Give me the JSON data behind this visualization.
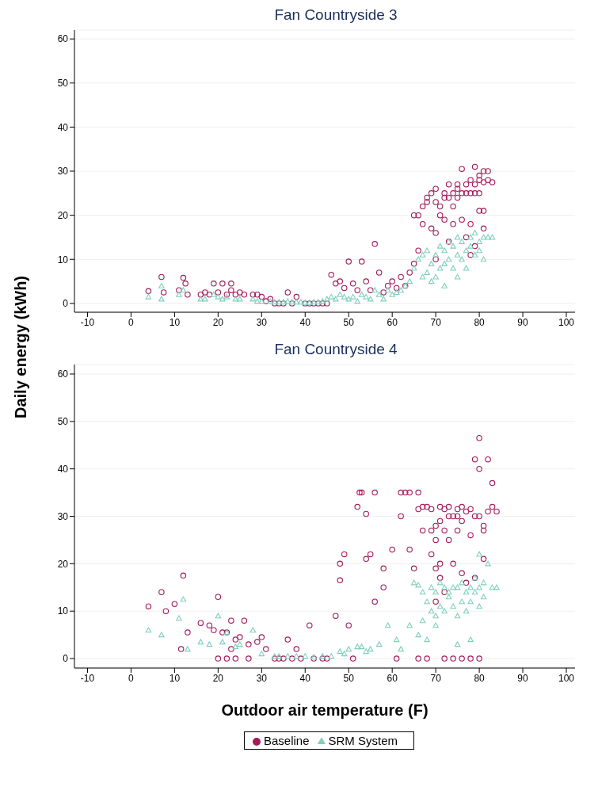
{
  "chart_data": [
    {
      "type": "scatter",
      "title": "Fan Countryside 3",
      "ylabel": "Daily energy (kWh)",
      "xlim": [
        -13,
        102
      ],
      "xticks": [
        -10,
        0,
        10,
        20,
        30,
        40,
        50,
        60,
        70,
        80,
        90,
        100
      ],
      "ylim": [
        -2,
        62
      ],
      "yticks": [
        0,
        10,
        20,
        30,
        40,
        50,
        60
      ],
      "grid": "y",
      "legend": false,
      "series": [
        {
          "color": "#a3195b",
          "marker": "circle",
          "x": [
            4,
            7,
            7.5,
            11,
            12,
            12.5,
            13,
            16,
            17,
            18,
            19,
            20,
            21,
            22,
            23,
            23,
            24,
            25,
            26,
            28,
            29,
            30,
            31,
            32,
            33,
            34,
            35,
            36,
            37,
            38,
            40,
            41,
            42,
            43,
            44,
            45,
            46,
            47,
            48,
            49,
            50,
            51,
            52,
            53,
            54,
            55,
            56,
            57,
            58,
            59,
            60,
            61,
            62,
            63,
            64,
            65,
            65,
            66,
            66,
            67,
            67,
            68,
            68,
            69,
            69,
            70,
            70,
            70,
            70,
            71,
            71,
            72,
            72,
            72,
            73,
            73,
            73,
            74,
            74,
            74,
            75,
            75,
            75,
            76,
            76,
            76,
            77,
            77,
            77,
            78,
            78,
            78,
            79,
            79,
            79,
            80,
            80,
            80,
            80,
            81,
            81,
            81,
            81,
            82,
            82,
            83,
            79,
            78
          ],
          "values": [
            2.8,
            6,
            2.5,
            3,
            5.8,
            4.5,
            2,
            2,
            2.5,
            2,
            4.5,
            2.5,
            4.5,
            2,
            4.5,
            3,
            2,
            2.5,
            2,
            2,
            2,
            1.5,
            0.5,
            1,
            0,
            0,
            0,
            2.5,
            0,
            1.5,
            0,
            0,
            0,
            0,
            0,
            0,
            6.5,
            4.5,
            5,
            3.5,
            9.5,
            4.5,
            3,
            9.5,
            5,
            3,
            13.5,
            7,
            2.5,
            4,
            5,
            3.5,
            6,
            4,
            7,
            9,
            20,
            20,
            12,
            22,
            18,
            24,
            23,
            25,
            17,
            23,
            26,
            16,
            10,
            22,
            20,
            24,
            25,
            19,
            27,
            24,
            14,
            25,
            22,
            18,
            27,
            26,
            24,
            30.5,
            25,
            19,
            25,
            27,
            15,
            28,
            25,
            18,
            31,
            27,
            25,
            29,
            28,
            25,
            21,
            30,
            27.5,
            21,
            17,
            28,
            30,
            27.5,
            13,
            11
          ]
        },
        {
          "color": "#7fcfbd",
          "marker": "triangle",
          "x": [
            4,
            7,
            7,
            11,
            12,
            16,
            17,
            19,
            20,
            21,
            22,
            24,
            25,
            28,
            29,
            30,
            32,
            33,
            34,
            35,
            36,
            37,
            38,
            39,
            40,
            41,
            42,
            43,
            44,
            45,
            46,
            47,
            48,
            49,
            50,
            51,
            52,
            53,
            54,
            55,
            56,
            57,
            58,
            59,
            60,
            61,
            62,
            63,
            64,
            65,
            66,
            67,
            67,
            68,
            68,
            69,
            69,
            70,
            70,
            71,
            71,
            72,
            72,
            73,
            73,
            74,
            74,
            75,
            75,
            76,
            76,
            77,
            77,
            78,
            78,
            79,
            79,
            80,
            80,
            81,
            81,
            82,
            83,
            75,
            72
          ],
          "values": [
            1.5,
            4,
            1,
            2,
            3,
            1,
            1,
            2,
            1.5,
            1,
            1.5,
            1,
            1,
            1,
            0.5,
            0.5,
            0.5,
            0.3,
            0.3,
            0.3,
            0.5,
            0.3,
            0.3,
            0.3,
            0.2,
            0.2,
            0.3,
            0.3,
            0.5,
            1,
            1.5,
            1,
            2,
            1.5,
            1,
            1.5,
            0.5,
            2,
            1.5,
            1,
            3,
            2,
            1,
            3,
            2,
            2.5,
            3,
            4,
            5,
            8,
            10,
            11,
            6,
            7,
            12,
            5,
            9,
            6,
            11,
            8,
            13,
            9,
            12,
            10,
            14,
            8,
            13,
            11,
            15,
            10,
            14,
            12,
            8,
            13,
            15,
            11,
            16,
            14,
            12,
            15,
            10,
            15,
            15,
            6,
            4
          ]
        }
      ]
    },
    {
      "type": "scatter",
      "title": "Fan Countryside 4",
      "xlabel": "Outdoor air temperature (F)",
      "xlim": [
        -13,
        102
      ],
      "xticks": [
        -10,
        0,
        10,
        20,
        30,
        40,
        50,
        60,
        70,
        80,
        90,
        100
      ],
      "ylim": [
        -2,
        62
      ],
      "yticks": [
        0,
        10,
        20,
        30,
        40,
        50,
        60
      ],
      "grid": "y",
      "legend": "bottom",
      "series": [
        {
          "name": "Baseline",
          "color": "#a3195b",
          "marker": "circle",
          "x": [
            4,
            7,
            8,
            10,
            12,
            11.5,
            13,
            16,
            18,
            19,
            20,
            21,
            22,
            23,
            23,
            24,
            25,
            26,
            27,
            29,
            30,
            31,
            33,
            34,
            35,
            36,
            37,
            38,
            39,
            41,
            42,
            44,
            45,
            47,
            48,
            48,
            49,
            50,
            51,
            52,
            52.5,
            53,
            54,
            54,
            55,
            56,
            56,
            58,
            58,
            60,
            61,
            62,
            62,
            63,
            64,
            64,
            65,
            66,
            66,
            67,
            67,
            68,
            68,
            69,
            69,
            69,
            70,
            70,
            70,
            70,
            71,
            71,
            71,
            71,
            72,
            72,
            72,
            73,
            73,
            73,
            74,
            74,
            75,
            75,
            75,
            76,
            76,
            76,
            77,
            77,
            78,
            78,
            79,
            79,
            79,
            80,
            80,
            80,
            80,
            81,
            81,
            82,
            82,
            83,
            83,
            84,
            81,
            66,
            72,
            74,
            76,
            78,
            20,
            22,
            24,
            27
          ],
          "values": [
            11,
            14,
            10,
            11.5,
            17.5,
            2,
            5.5,
            7.5,
            7,
            6,
            13,
            5.5,
            5.5,
            8,
            2,
            4,
            4.5,
            8,
            3,
            3.5,
            4.5,
            2,
            0,
            0,
            0,
            4,
            0,
            2,
            0,
            7,
            0,
            0,
            0,
            9,
            20,
            16.5,
            22,
            7,
            0,
            32,
            35,
            35,
            30.5,
            21,
            22,
            35,
            12,
            15,
            19,
            23,
            0,
            35,
            30,
            35,
            35,
            23,
            19,
            31.5,
            35,
            32,
            27,
            32,
            0,
            31.5,
            27,
            22,
            25,
            28,
            19,
            12,
            32,
            29,
            20,
            17,
            31.5,
            27,
            14,
            32,
            30,
            25,
            30,
            20,
            31.5,
            30,
            27,
            32,
            29,
            18,
            31,
            16,
            31.5,
            26,
            42,
            30,
            17,
            46.5,
            40,
            30,
            0,
            28,
            21,
            42,
            31,
            37,
            32,
            31,
            27,
            0,
            0,
            0,
            0,
            0,
            0,
            0,
            0,
            0
          ]
        },
        {
          "name": "SRM System",
          "color": "#7fcfbd",
          "marker": "triangle",
          "x": [
            4,
            7,
            11,
            12,
            13,
            16,
            18,
            20,
            21,
            22,
            24,
            25,
            28,
            30,
            33,
            34,
            36,
            38,
            40,
            42,
            44,
            46,
            48,
            49,
            50,
            52,
            53,
            54,
            55,
            57,
            59,
            61,
            62,
            64,
            65,
            66,
            66,
            67,
            67,
            68,
            68,
            69,
            69,
            70,
            70,
            70,
            71,
            71,
            72,
            72,
            73,
            73,
            74,
            74,
            75,
            75,
            76,
            76,
            77,
            77,
            78,
            78,
            79,
            79,
            80,
            80,
            80,
            81,
            81,
            82,
            83,
            84,
            75,
            78
          ],
          "values": [
            6,
            5,
            8.5,
            12.5,
            2,
            3.5,
            3,
            9,
            3.5,
            5.5,
            2.5,
            3,
            6,
            1,
            0.5,
            0.5,
            0.5,
            0.5,
            0.5,
            0.3,
            0.5,
            0.5,
            1.5,
            1,
            2,
            2.5,
            2.5,
            1.5,
            2,
            3,
            7,
            4,
            2,
            7,
            16,
            15.5,
            5,
            14,
            8,
            12,
            4,
            15,
            10,
            14,
            7,
            9,
            16,
            11,
            15,
            10,
            14,
            13,
            15,
            11,
            15,
            9,
            16,
            12,
            14,
            10,
            15,
            12,
            17,
            14,
            22,
            15,
            11,
            16,
            13,
            20,
            15,
            15,
            3,
            4
          ]
        }
      ]
    }
  ]
}
